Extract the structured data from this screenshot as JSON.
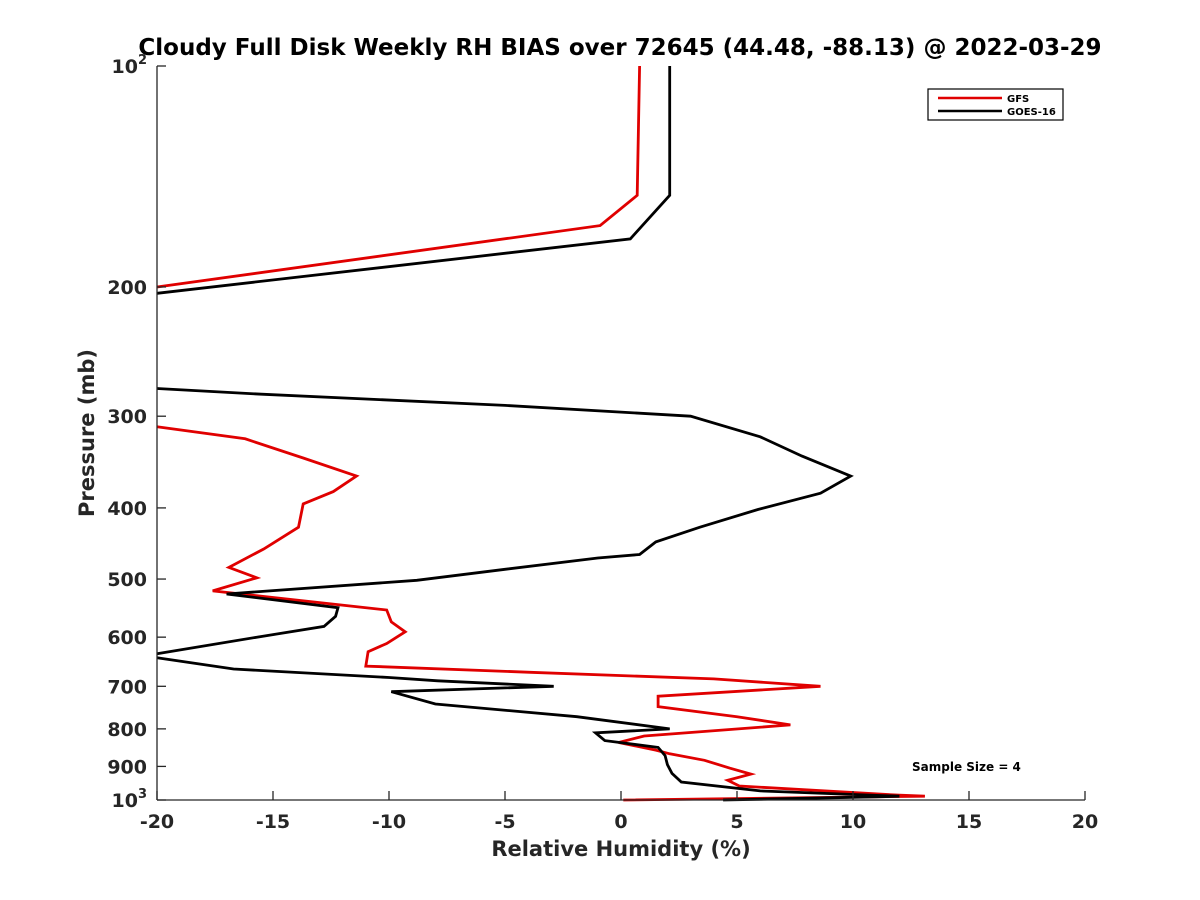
{
  "chart_data": {
    "type": "line",
    "title": "Cloudy Full Disk Weekly RH BIAS over 72645 (44.48, -88.13) @ 2022-03-29",
    "xlabel": "Relative Humidity (%)",
    "ylabel": "Pressure (mb)",
    "xlim": [
      -20,
      20
    ],
    "ylim": [
      100,
      1000
    ],
    "y_scale": "log",
    "y_reversed": true,
    "grid": false,
    "legend_position": "top-right",
    "x_ticks": [
      -20,
      -15,
      -10,
      -5,
      0,
      5,
      10,
      15,
      20
    ],
    "x_tick_labels": [
      "-20",
      "-15",
      "-10",
      "-5",
      "0",
      "5",
      "10",
      "15",
      "20"
    ],
    "y_ticks": [
      100,
      200,
      300,
      400,
      500,
      600,
      700,
      800,
      900,
      1000
    ],
    "y_tick_labels": [
      {
        "base": "10",
        "exp": "2"
      },
      {
        "base": "200",
        "exp": ""
      },
      {
        "base": "300",
        "exp": ""
      },
      {
        "base": "400",
        "exp": ""
      },
      {
        "base": "500",
        "exp": ""
      },
      {
        "base": "600",
        "exp": ""
      },
      {
        "base": "700",
        "exp": ""
      },
      {
        "base": "800",
        "exp": ""
      },
      {
        "base": "900",
        "exp": ""
      },
      {
        "base": "10",
        "exp": "3"
      }
    ],
    "annotation": "Sample Size = 4",
    "series": [
      {
        "name": "GFS",
        "color": "#e00000",
        "points": [
          [
            0.8,
            100
          ],
          [
            0.7,
            150
          ],
          [
            -0.9,
            165
          ],
          [
            -20,
            200
          ],
          [
            null,
            null
          ],
          [
            -20,
            310
          ],
          [
            -16.2,
            322
          ],
          [
            -13.7,
            342
          ],
          [
            -11.4,
            362
          ],
          [
            -12.4,
            380
          ],
          [
            -13.7,
            395
          ],
          [
            -13.9,
            425
          ],
          [
            -15.4,
            455
          ],
          [
            -16.9,
            482
          ],
          [
            -15.7,
            498
          ],
          [
            -17.6,
            519
          ],
          [
            -10.1,
            551
          ],
          [
            -9.9,
            572
          ],
          [
            -9.3,
            590
          ],
          [
            -10.1,
            612
          ],
          [
            -10.9,
            628
          ],
          [
            -11.0,
            657
          ],
          [
            -3.9,
            670
          ],
          [
            4.0,
            684
          ],
          [
            8.6,
            700
          ],
          [
            1.6,
            722
          ],
          [
            1.6,
            746
          ],
          [
            5.0,
            770
          ],
          [
            7.3,
            790
          ],
          [
            1.0,
            818
          ],
          [
            -0.1,
            835
          ],
          [
            1.5,
            855
          ],
          [
            2.1,
            865
          ],
          [
            3.6,
            883
          ],
          [
            4.7,
            905
          ],
          [
            5.6,
            922
          ],
          [
            4.6,
            940
          ],
          [
            5.1,
            957
          ],
          [
            12.0,
            985
          ],
          [
            13.1,
            988
          ],
          [
            0.1,
            1000
          ]
        ]
      },
      {
        "name": "GOES-16",
        "color": "#000000",
        "points": [
          [
            2.1,
            100
          ],
          [
            2.1,
            150
          ],
          [
            0.4,
            172
          ],
          [
            -20,
            204
          ],
          [
            null,
            null
          ],
          [
            -20,
            275
          ],
          [
            -15.5,
            280
          ],
          [
            -5,
            290
          ],
          [
            3.0,
            300
          ],
          [
            6.0,
            320
          ],
          [
            7.8,
            340
          ],
          [
            9.9,
            362
          ],
          [
            8.6,
            382
          ],
          [
            5.9,
            402
          ],
          [
            3.4,
            425
          ],
          [
            1.5,
            445
          ],
          [
            0.8,
            463
          ],
          [
            -1.0,
            468
          ],
          [
            -5.0,
            485
          ],
          [
            -8.8,
            502
          ],
          [
            -17.0,
            524
          ],
          [
            -12.2,
            547
          ],
          [
            -12.3,
            562
          ],
          [
            -12.8,
            580
          ],
          [
            -15.7,
            600
          ],
          [
            -20,
            632
          ],
          [
            null,
            null
          ],
          [
            -20,
            640
          ],
          [
            -16.7,
            663
          ],
          [
            -10.0,
            681
          ],
          [
            -7.9,
            688
          ],
          [
            -2.9,
            700
          ],
          [
            -9.9,
            712
          ],
          [
            -8.0,
            740
          ],
          [
            -1.9,
            770
          ],
          [
            2.1,
            800
          ],
          [
            -1.1,
            810
          ],
          [
            -0.7,
            830
          ],
          [
            1.6,
            848
          ],
          [
            1.9,
            870
          ],
          [
            2.0,
            895
          ],
          [
            2.2,
            920
          ],
          [
            2.6,
            945
          ],
          [
            6.0,
            972
          ],
          [
            12.0,
            988
          ],
          [
            11.0,
            990
          ],
          [
            4.4,
            1000
          ]
        ]
      }
    ]
  }
}
